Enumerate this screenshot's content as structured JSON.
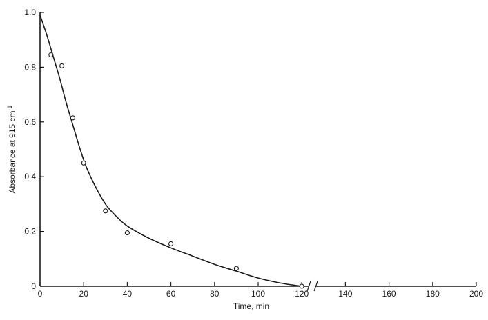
{
  "chart_data": {
    "type": "scatter",
    "title": "",
    "xlabel": "Time, min",
    "ylabel": "Absorbance at 915 cm",
    "ylabel_superscript": "-1",
    "xlim": [
      0,
      200
    ],
    "ylim": [
      0,
      1.0
    ],
    "x_ticks": [
      0,
      20,
      40,
      60,
      80,
      100,
      120,
      140,
      160,
      180,
      200
    ],
    "y_ticks": [
      0,
      0.2,
      0.4,
      0.6,
      0.8,
      1.0
    ],
    "x_tick_labels": [
      "0",
      "20",
      "40",
      "60",
      "80",
      "100",
      "120",
      "140",
      "160",
      "180",
      "200"
    ],
    "y_tick_labels": [
      "0",
      "0.2",
      "0.4",
      "0.6",
      "0.8",
      "1.0"
    ],
    "axis_break_at": 125,
    "grid": false,
    "legend": "none",
    "series": [
      {
        "kind": "points",
        "marker": "open-circle",
        "x": [
          5,
          10,
          15,
          20,
          30,
          40,
          60,
          90,
          120
        ],
        "y": [
          0.845,
          0.805,
          0.615,
          0.45,
          0.275,
          0.195,
          0.155,
          0.065,
          0.0
        ]
      },
      {
        "kind": "fitted-curve",
        "x": [
          0,
          3,
          6,
          9,
          12,
          15,
          18,
          21,
          25,
          30,
          35,
          40,
          50,
          60,
          70,
          80,
          90,
          100,
          110,
          120
        ],
        "y": [
          0.99,
          0.92,
          0.84,
          0.76,
          0.67,
          0.59,
          0.51,
          0.44,
          0.37,
          0.3,
          0.255,
          0.22,
          0.175,
          0.14,
          0.11,
          0.08,
          0.055,
          0.03,
          0.012,
          0.0
        ]
      }
    ]
  }
}
